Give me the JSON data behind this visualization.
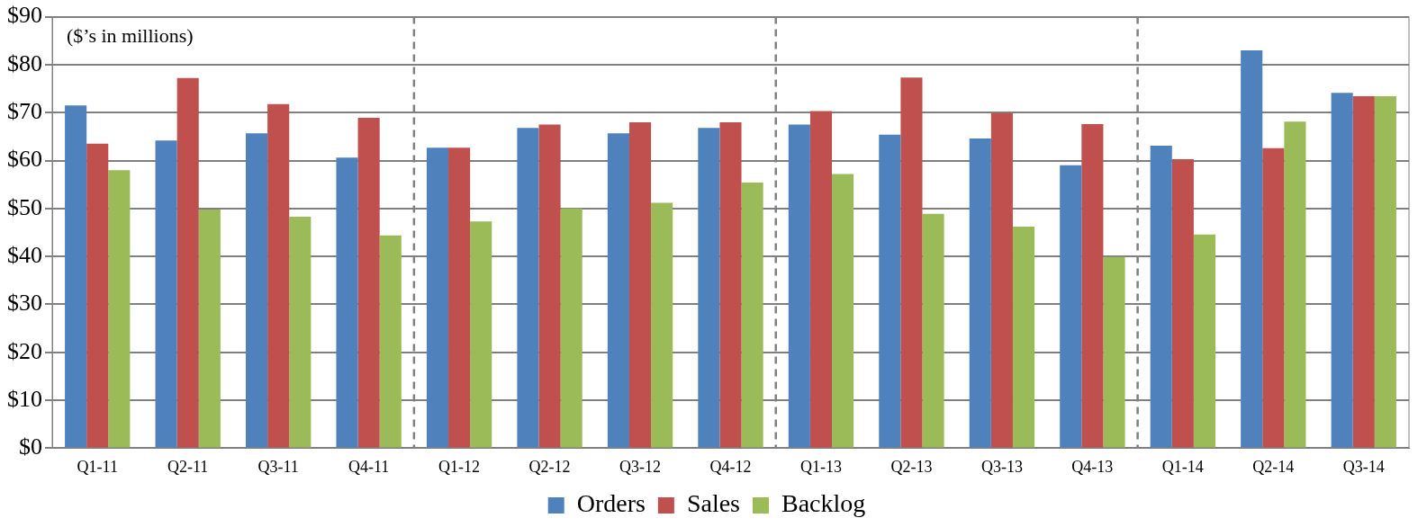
{
  "chart_data": {
    "type": "bar",
    "categories": [
      "Q1-11",
      "Q2-11",
      "Q3-11",
      "Q4-11",
      "Q1-12",
      "Q2-12",
      "Q3-12",
      "Q4-12",
      "Q1-13",
      "Q2-13",
      "Q3-13",
      "Q4-13",
      "Q1-14",
      "Q2-14",
      "Q3-14"
    ],
    "series": [
      {
        "name": "Orders",
        "color": "#4f81bd",
        "values": [
          71.5,
          64.2,
          65.7,
          60.6,
          62.7,
          66.8,
          65.7,
          66.8,
          67.5,
          65.4,
          64.6,
          59,
          63.1,
          83,
          74.1
        ]
      },
      {
        "name": "Sales",
        "color": "#c0504d",
        "values": [
          63.5,
          77.2,
          71.8,
          68.9,
          62.7,
          67.5,
          68,
          68,
          70.3,
          77.3,
          69.9,
          67.6,
          60.3,
          62.6,
          73.4
        ]
      },
      {
        "name": "Backlog",
        "color": "#9bbb59",
        "values": [
          58,
          49.8,
          48.3,
          44.4,
          47.3,
          50,
          51.2,
          55.4,
          57.2,
          48.9,
          46.2,
          39.9,
          44.6,
          68.1,
          73.4
        ]
      }
    ],
    "ylim": [
      0,
      90
    ],
    "yticks": [
      {
        "value": 0,
        "label": "$0"
      },
      {
        "value": 10,
        "label": "$10"
      },
      {
        "value": 20,
        "label": "$20"
      },
      {
        "value": 30,
        "label": "$30"
      },
      {
        "value": 40,
        "label": "$40"
      },
      {
        "value": 50,
        "label": "$50"
      },
      {
        "value": 60,
        "label": "$60"
      },
      {
        "value": 70,
        "label": "$70"
      },
      {
        "value": 80,
        "label": "$80"
      },
      {
        "value": 90,
        "label": "$90"
      }
    ],
    "grid": "y",
    "legend": "bottom",
    "annotations": [
      "($’s in millions)"
    ]
  }
}
